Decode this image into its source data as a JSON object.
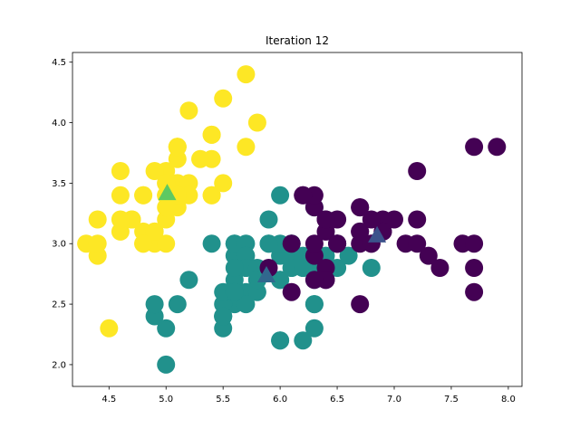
{
  "chart_data": {
    "type": "scatter",
    "title": "Iteration 12",
    "xlabel": "",
    "ylabel": "",
    "xlim": [
      4.18,
      8.12
    ],
    "ylim": [
      1.82,
      4.58
    ],
    "xticks": [
      4.5,
      5.0,
      5.5,
      6.0,
      6.5,
      7.0,
      7.5,
      8.0
    ],
    "xtick_labels": [
      "4.5",
      "5.0",
      "5.5",
      "6.0",
      "6.5",
      "7.0",
      "7.5",
      "8.0"
    ],
    "yticks": [
      2.0,
      2.5,
      3.0,
      3.5,
      4.0,
      4.5
    ],
    "ytick_labels": [
      "2.0",
      "2.5",
      "3.0",
      "3.5",
      "4.0",
      "4.5"
    ],
    "grid": false,
    "legend": false,
    "series": [
      {
        "color": "#fde725",
        "points": [
          [
            5.1,
            3.5
          ],
          [
            4.9,
            3.0
          ],
          [
            4.7,
            3.2
          ],
          [
            4.6,
            3.1
          ],
          [
            5.0,
            3.6
          ],
          [
            5.4,
            3.9
          ],
          [
            4.6,
            3.4
          ],
          [
            5.0,
            3.4
          ],
          [
            4.4,
            2.9
          ],
          [
            4.9,
            3.1
          ],
          [
            5.4,
            3.7
          ],
          [
            4.8,
            3.4
          ],
          [
            4.8,
            3.0
          ],
          [
            4.3,
            3.0
          ],
          [
            5.8,
            4.0
          ],
          [
            5.7,
            4.4
          ],
          [
            5.4,
            3.9
          ],
          [
            5.1,
            3.5
          ],
          [
            5.7,
            3.8
          ],
          [
            5.1,
            3.8
          ],
          [
            5.4,
            3.4
          ],
          [
            5.1,
            3.7
          ],
          [
            4.6,
            3.6
          ],
          [
            5.1,
            3.3
          ],
          [
            4.8,
            3.4
          ],
          [
            5.0,
            3.0
          ],
          [
            5.0,
            3.4
          ],
          [
            5.2,
            3.5
          ],
          [
            5.2,
            3.4
          ],
          [
            4.7,
            3.2
          ],
          [
            4.8,
            3.1
          ],
          [
            5.4,
            3.4
          ],
          [
            5.2,
            4.1
          ],
          [
            5.5,
            4.2
          ],
          [
            4.9,
            3.1
          ],
          [
            5.0,
            3.2
          ],
          [
            5.5,
            3.5
          ],
          [
            4.9,
            3.6
          ],
          [
            4.4,
            3.0
          ],
          [
            5.1,
            3.4
          ],
          [
            5.0,
            3.5
          ],
          [
            4.5,
            2.3
          ],
          [
            4.4,
            3.2
          ],
          [
            5.0,
            3.5
          ],
          [
            5.1,
            3.8
          ],
          [
            4.8,
            3.0
          ],
          [
            5.1,
            3.8
          ],
          [
            4.6,
            3.2
          ],
          [
            5.3,
            3.7
          ],
          [
            5.0,
            3.3
          ]
        ]
      },
      {
        "color": "#21918c",
        "points": [
          [
            5.5,
            2.3
          ],
          [
            6.5,
            2.8
          ],
          [
            5.7,
            2.8
          ],
          [
            6.3,
            3.3
          ],
          [
            4.9,
            2.4
          ],
          [
            6.6,
            2.9
          ],
          [
            5.2,
            2.7
          ],
          [
            5.0,
            2.0
          ],
          [
            5.9,
            3.0
          ],
          [
            6.0,
            2.2
          ],
          [
            6.1,
            2.9
          ],
          [
            5.6,
            2.9
          ],
          [
            5.6,
            3.0
          ],
          [
            5.8,
            2.7
          ],
          [
            6.2,
            2.2
          ],
          [
            5.6,
            2.5
          ],
          [
            5.9,
            3.2
          ],
          [
            6.1,
            2.8
          ],
          [
            6.3,
            2.5
          ],
          [
            6.1,
            2.8
          ],
          [
            6.4,
            2.9
          ],
          [
            6.0,
            2.9
          ],
          [
            5.7,
            2.6
          ],
          [
            5.5,
            2.4
          ],
          [
            5.5,
            2.4
          ],
          [
            5.8,
            2.7
          ],
          [
            6.0,
            2.7
          ],
          [
            5.4,
            3.0
          ],
          [
            6.0,
            3.4
          ],
          [
            6.3,
            2.3
          ],
          [
            5.6,
            3.0
          ],
          [
            5.5,
            2.5
          ],
          [
            5.5,
            2.6
          ],
          [
            6.1,
            3.0
          ],
          [
            5.8,
            2.6
          ],
          [
            5.0,
            2.3
          ],
          [
            5.6,
            2.7
          ],
          [
            5.7,
            3.0
          ],
          [
            5.7,
            2.9
          ],
          [
            6.2,
            2.9
          ],
          [
            5.1,
            2.5
          ],
          [
            5.7,
            2.8
          ],
          [
            4.9,
            2.5
          ],
          [
            5.7,
            2.5
          ],
          [
            5.8,
            2.8
          ],
          [
            6.0,
            2.2
          ],
          [
            5.6,
            2.8
          ],
          [
            6.3,
            2.7
          ],
          [
            6.2,
            2.8
          ],
          [
            6.1,
            3.0
          ],
          [
            6.3,
            2.8
          ],
          [
            6.0,
            3.0
          ],
          [
            5.8,
            2.7
          ],
          [
            6.8,
            2.8
          ],
          [
            6.3,
            2.5
          ],
          [
            5.9,
            3.0
          ],
          [
            6.4,
            2.8
          ],
          [
            6.5,
            3.0
          ],
          [
            6.0,
            2.7
          ],
          [
            5.5,
            2.4
          ],
          [
            5.6,
            2.6
          ],
          [
            6.2,
            2.8
          ]
        ]
      },
      {
        "color": "#440154",
        "points": [
          [
            7.0,
            3.2
          ],
          [
            6.4,
            3.2
          ],
          [
            6.9,
            3.1
          ],
          [
            6.7,
            3.1
          ],
          [
            6.8,
            3.0
          ],
          [
            6.7,
            3.0
          ],
          [
            6.3,
            3.3
          ],
          [
            7.1,
            3.0
          ],
          [
            6.5,
            3.0
          ],
          [
            7.6,
            3.0
          ],
          [
            7.3,
            2.9
          ],
          [
            6.7,
            2.5
          ],
          [
            7.2,
            3.6
          ],
          [
            6.4,
            2.7
          ],
          [
            6.5,
            3.2
          ],
          [
            7.7,
            3.8
          ],
          [
            7.7,
            2.6
          ],
          [
            6.9,
            3.2
          ],
          [
            7.7,
            2.8
          ],
          [
            6.7,
            3.3
          ],
          [
            7.2,
            3.2
          ],
          [
            6.1,
            3.0
          ],
          [
            7.2,
            3.0
          ],
          [
            7.4,
            2.8
          ],
          [
            7.9,
            3.8
          ],
          [
            6.4,
            2.8
          ],
          [
            6.1,
            2.6
          ],
          [
            7.7,
            3.0
          ],
          [
            6.3,
            3.4
          ],
          [
            6.4,
            3.1
          ],
          [
            6.9,
            3.1
          ],
          [
            6.7,
            3.1
          ],
          [
            6.9,
            3.1
          ],
          [
            6.8,
            3.2
          ],
          [
            6.7,
            3.3
          ],
          [
            6.2,
            3.4
          ],
          [
            6.5,
            3.0
          ],
          [
            6.4,
            3.2
          ],
          [
            6.3,
            2.9
          ],
          [
            6.4,
            2.7
          ],
          [
            6.2,
            3.4
          ],
          [
            5.9,
            2.8
          ],
          [
            6.3,
            2.7
          ],
          [
            6.5,
            3.0
          ],
          [
            6.8,
            3.0
          ],
          [
            6.3,
            3.0
          ]
        ]
      }
    ],
    "centroids": [
      {
        "color": "#3b528b",
        "x": 6.85,
        "y": 3.07
      },
      {
        "color": "#5ec962",
        "x": 5.01,
        "y": 3.42
      },
      {
        "color": "#31688e",
        "x": 5.88,
        "y": 2.74
      }
    ]
  }
}
